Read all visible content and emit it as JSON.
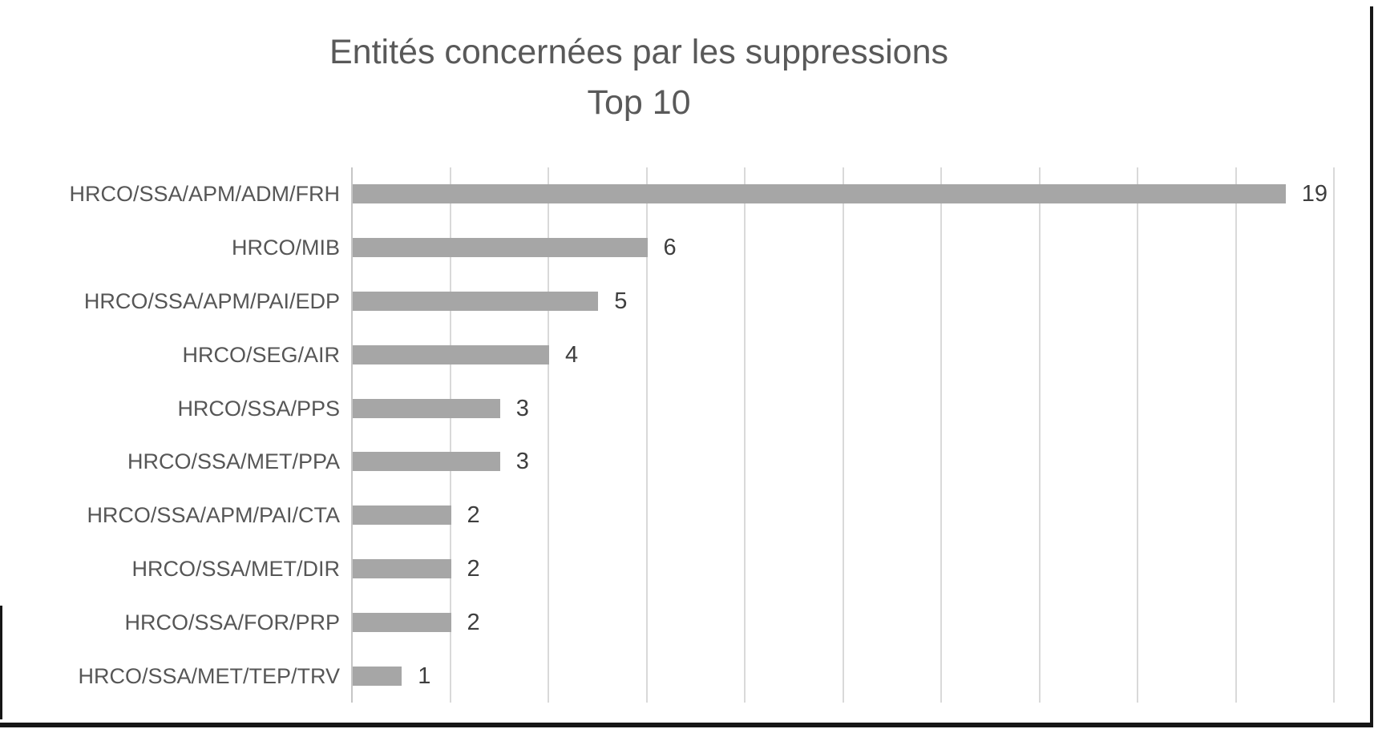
{
  "chart_data": {
    "type": "bar",
    "orientation": "horizontal",
    "title": "Entités concernées par les suppressions",
    "subtitle": "Top 10",
    "categories": [
      "HRCO/SSA/APM/ADM/FRH",
      "HRCO/MIB",
      "HRCO/SSA/APM/PAI/EDP",
      "HRCO/SEG/AIR",
      "HRCO/SSA/PPS",
      "HRCO/SSA/MET/PPA",
      "HRCO/SSA/APM/PAI/CTA",
      "HRCO/SSA/MET/DIR",
      "HRCO/SSA/FOR/PRP",
      "HRCO/SSA/MET/TEP/TRV"
    ],
    "values": [
      19,
      6,
      5,
      4,
      3,
      3,
      2,
      2,
      2,
      1
    ],
    "xlabel": "",
    "ylabel": "",
    "xlim": [
      0,
      20
    ],
    "gridline_step": 2,
    "grid": "vertical-gridlines-only",
    "legend": "none",
    "data_labels": "shown-at-bar-end",
    "colors": {
      "bar": "#a6a6a6",
      "title": "#595959",
      "category_label": "#565656",
      "value_label": "#3e3e3e",
      "gridline": "#d9d9d9",
      "axis_line": "#c6c6c6",
      "frame": "#161616",
      "background": "#ffffff"
    }
  }
}
